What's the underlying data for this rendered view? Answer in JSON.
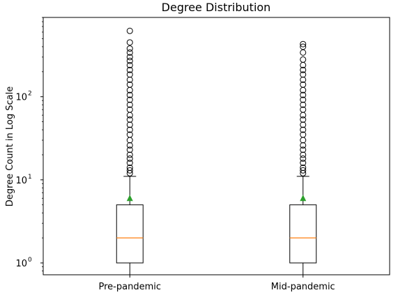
{
  "chart_data": {
    "type": "boxplot",
    "title": "Degree Distribution",
    "xlabel": "",
    "ylabel": "Degree Count in Log Scale",
    "yscale": "log",
    "ylim": [
      0.72,
      900
    ],
    "y_ticks": [
      1,
      10,
      100
    ],
    "y_tick_labels": [
      "10",
      "10",
      "10"
    ],
    "y_tick_exponents": [
      "0",
      "1",
      "2"
    ],
    "grid": false,
    "categories": [
      "Pre-pandemic",
      "Mid-pandemic"
    ],
    "boxes": [
      {
        "label": "Pre-pandemic",
        "whisker_low": 0.72,
        "q1": 1,
        "median": 2,
        "q3": 5,
        "whisker_high": 11,
        "mean": 6,
        "outliers": [
          12,
          13,
          14,
          16,
          18,
          20,
          23,
          26,
          30,
          35,
          40,
          46,
          53,
          60,
          70,
          80,
          92,
          105,
          120,
          140,
          160,
          185,
          210,
          240,
          270,
          300,
          340,
          380,
          450,
          620
        ]
      },
      {
        "label": "Mid-pandemic",
        "whisker_low": 0.72,
        "q1": 1,
        "median": 2,
        "q3": 5,
        "whisker_high": 11,
        "mean": 6,
        "outliers": [
          12,
          13,
          14,
          16,
          18,
          20,
          23,
          26,
          30,
          35,
          40,
          46,
          53,
          60,
          70,
          80,
          92,
          105,
          120,
          140,
          160,
          185,
          210,
          240,
          280,
          340,
          400,
          430
        ]
      }
    ],
    "colors": {
      "median": "#ff7f0e",
      "mean_marker": "#2ca02c",
      "box": "#000000"
    }
  }
}
